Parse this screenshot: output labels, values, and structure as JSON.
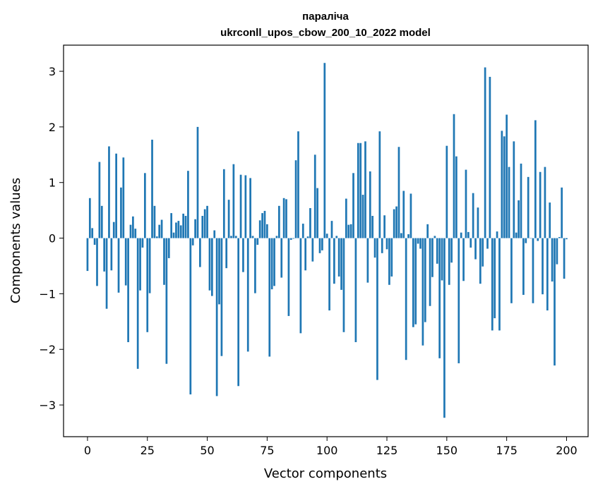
{
  "chart_data": {
    "type": "bar",
    "title_line1": "параліча",
    "title_line2": "ukrconll_upos_cbow_200_10_2022 model",
    "xlabel": "Vector components",
    "ylabel": "Components values",
    "xlim": [
      -10,
      209
    ],
    "ylim": [
      -3.57,
      3.47
    ],
    "x_ticks": [
      0,
      25,
      50,
      75,
      100,
      125,
      150,
      175,
      200
    ],
    "y_ticks": [
      -3,
      -2,
      -1,
      0,
      1,
      2,
      3
    ],
    "y_tick_labels": [
      "−3",
      "−2",
      "−1",
      "0",
      "1",
      "2",
      "3"
    ],
    "bar_color": "#1f77b4",
    "values": [
      -0.59,
      0.72,
      0.18,
      -0.12,
      -0.86,
      1.37,
      0.58,
      -0.6,
      -1.27,
      1.65,
      -0.58,
      0.29,
      1.52,
      -0.98,
      0.91,
      1.45,
      -0.85,
      -1.87,
      0.24,
      0.39,
      0.17,
      -2.35,
      -0.94,
      -0.17,
      1.17,
      -1.69,
      -0.99,
      1.77,
      0.58,
      0.03,
      0.24,
      0.33,
      -0.84,
      -2.26,
      -0.36,
      0.45,
      0.1,
      0.28,
      0.31,
      0.23,
      0.44,
      0.4,
      1.21,
      -2.81,
      -0.13,
      0.34,
      2.0,
      -0.52,
      0.4,
      0.52,
      0.58,
      -0.94,
      -1.04,
      0.14,
      -2.84,
      -1.19,
      -2.12,
      1.24,
      -0.54,
      0.69,
      0.04,
      1.33,
      0.04,
      -2.66,
      1.14,
      -0.61,
      1.13,
      -2.04,
      1.08,
      0.04,
      -0.99,
      -0.12,
      0.32,
      0.45,
      0.49,
      0.25,
      -2.13,
      -0.92,
      -0.86,
      0.04,
      0.58,
      -0.71,
      0.72,
      0.7,
      -1.4,
      -0.03,
      -0.01,
      1.4,
      1.92,
      -1.71,
      0.26,
      -0.58,
      0.03,
      0.54,
      -0.42,
      1.5,
      0.9,
      -0.27,
      -0.22,
      3.15,
      0.08,
      -1.3,
      0.31,
      -0.82,
      0.04,
      -0.69,
      -0.93,
      -1.69,
      0.71,
      0.24,
      0.25,
      1.17,
      -1.87,
      1.71,
      1.71,
      0.78,
      1.74,
      -0.8,
      1.2,
      0.4,
      -0.35,
      -2.55,
      1.92,
      -0.27,
      0.41,
      -0.2,
      -0.84,
      -0.69,
      0.52,
      0.57,
      1.64,
      0.09,
      0.85,
      -2.19,
      0.07,
      0.8,
      -1.6,
      -1.55,
      -0.1,
      -0.19,
      -1.93,
      -1.51,
      0.25,
      -1.22,
      -0.7,
      0.04,
      -0.46,
      -2.16,
      -0.76,
      -3.23,
      1.66,
      -0.84,
      -0.44,
      2.23,
      1.47,
      -2.25,
      0.1,
      -0.77,
      1.23,
      0.11,
      -0.17,
      0.81,
      -0.38,
      0.55,
      -0.82,
      -0.51,
      3.07,
      -0.19,
      2.9,
      -1.66,
      -1.44,
      0.12,
      -1.66,
      1.93,
      1.83,
      2.22,
      1.28,
      -1.17,
      1.74,
      0.1,
      0.68,
      1.34,
      -1.02,
      -0.09,
      1.1,
      0.0,
      -1.17,
      2.12,
      -0.05,
      1.19,
      -1.01,
      1.28,
      -1.3,
      0.64,
      -0.78,
      -2.29,
      -0.47,
      0.02,
      0.91,
      -0.73,
      -0.02
    ]
  }
}
